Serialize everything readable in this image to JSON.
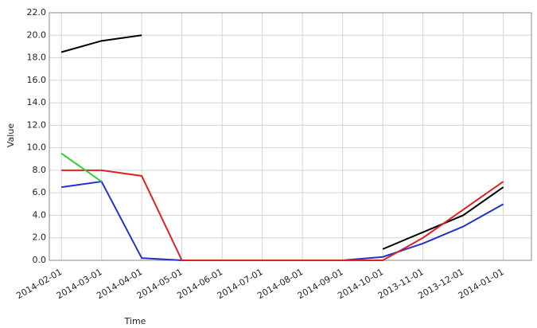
{
  "chart_data": {
    "type": "line",
    "xlabel": "Time",
    "ylabel": "Value",
    "categories": [
      "2014-02-01",
      "2014-03-01",
      "2014-04-01",
      "2014-05-01",
      "2014-06-01",
      "2014-07-01",
      "2014-08-01",
      "2014-09-01",
      "2014-10-01",
      "2013-11-01",
      "2013-12-01",
      "2014-01-01"
    ],
    "series": [
      {
        "name": "black",
        "color": "#000000",
        "values": [
          18.5,
          19.5,
          20,
          null,
          null,
          null,
          null,
          null,
          1,
          2.5,
          4,
          6.5
        ]
      },
      {
        "name": "blue",
        "color": "#2233cc",
        "values": [
          6.5,
          7,
          0.2,
          0,
          0,
          0,
          0,
          0,
          0.3,
          1.5,
          3,
          5
        ]
      },
      {
        "name": "red",
        "color": "#dd2222",
        "values": [
          8,
          8,
          7.5,
          0,
          0,
          0,
          0,
          0,
          0,
          2,
          4.5,
          7
        ]
      },
      {
        "name": "green",
        "color": "#33cc33",
        "values": [
          9.5,
          7,
          null,
          null,
          null,
          null,
          null,
          null,
          null,
          null,
          null,
          null
        ]
      }
    ],
    "ylim": [
      0,
      22
    ],
    "yticks": [
      {
        "value": 0,
        "label": "0.0"
      },
      {
        "value": 2,
        "label": "2.0"
      },
      {
        "value": 4,
        "label": "4.0"
      },
      {
        "value": 6,
        "label": "6.0"
      },
      {
        "value": 8,
        "label": "8.0"
      },
      {
        "value": 10,
        "label": "10.0"
      },
      {
        "value": 12,
        "label": "12.0"
      },
      {
        "value": 14,
        "label": "14.0"
      },
      {
        "value": 16,
        "label": "16.0"
      },
      {
        "value": 18,
        "label": "18.0"
      },
      {
        "value": 20,
        "label": "20.0"
      },
      {
        "value": 22,
        "label": "22.0"
      }
    ],
    "grid": true
  }
}
